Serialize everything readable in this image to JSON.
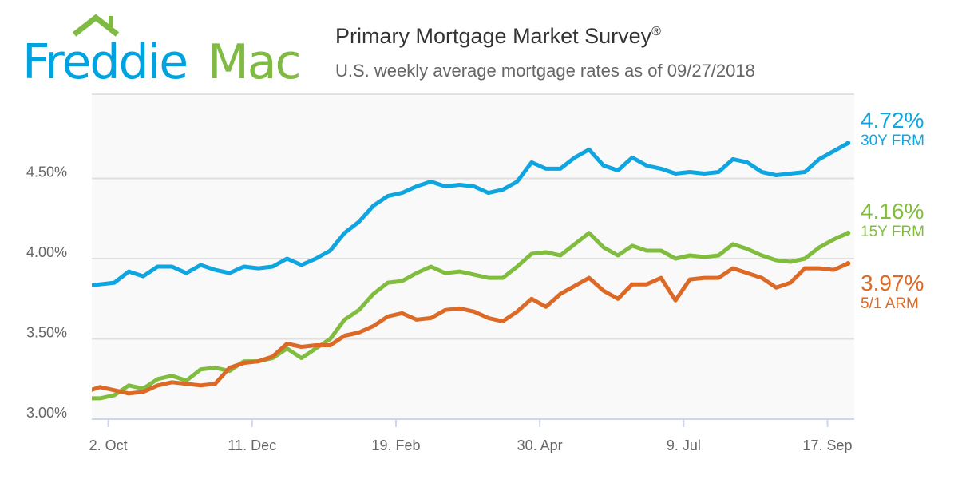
{
  "logo": {
    "text_left": "Freddie",
    "text_right": "Mac",
    "colors": {
      "left": "#00a3e0",
      "right": "#7fba42"
    }
  },
  "header": {
    "title": "Primary Mortgage Market Survey",
    "title_mark": "®",
    "subtitle": "U.S. weekly average mortgage rates as of 09/27/2018"
  },
  "chart_data": {
    "type": "line",
    "title": "Primary Mortgage Market Survey®",
    "subtitle": "U.S. weekly average mortgage rates as of 09/27/2018",
    "xlabel": "",
    "ylabel": "",
    "xlim": [
      "2017-09-24",
      "2018-09-30"
    ],
    "ylim": [
      3.0,
      5.0
    ],
    "grid": true,
    "legend": "right (end labels)",
    "y_ticks": [
      {
        "value": 3.0,
        "label": "3.00%"
      },
      {
        "value": 3.5,
        "label": "3.50%"
      },
      {
        "value": 4.0,
        "label": "4.00%"
      },
      {
        "value": 4.5,
        "label": "4.50%"
      }
    ],
    "x_ticks": [
      {
        "date": "2017-10-02",
        "label": "2. Oct"
      },
      {
        "date": "2017-12-11",
        "label": "11. Dec"
      },
      {
        "date": "2018-02-19",
        "label": "19. Feb"
      },
      {
        "date": "2018-04-30",
        "label": "30. Apr"
      },
      {
        "date": "2018-07-09",
        "label": "9. Jul"
      },
      {
        "date": "2018-09-17",
        "label": "17. Sep"
      }
    ],
    "x": [
      "2017-09-21",
      "2017-09-28",
      "2017-10-05",
      "2017-10-12",
      "2017-10-19",
      "2017-10-26",
      "2017-11-02",
      "2017-11-09",
      "2017-11-16",
      "2017-11-23",
      "2017-11-30",
      "2017-12-07",
      "2017-12-14",
      "2017-12-21",
      "2017-12-28",
      "2018-01-04",
      "2018-01-11",
      "2018-01-18",
      "2018-01-25",
      "2018-02-01",
      "2018-02-08",
      "2018-02-15",
      "2018-02-22",
      "2018-03-01",
      "2018-03-08",
      "2018-03-15",
      "2018-03-22",
      "2018-03-29",
      "2018-04-05",
      "2018-04-12",
      "2018-04-19",
      "2018-04-26",
      "2018-05-03",
      "2018-05-10",
      "2018-05-17",
      "2018-05-24",
      "2018-05-31",
      "2018-06-07",
      "2018-06-14",
      "2018-06-21",
      "2018-06-28",
      "2018-07-05",
      "2018-07-12",
      "2018-07-19",
      "2018-07-26",
      "2018-08-02",
      "2018-08-09",
      "2018-08-16",
      "2018-08-23",
      "2018-08-30",
      "2018-09-06",
      "2018-09-13",
      "2018-09-20",
      "2018-09-27"
    ],
    "series": [
      {
        "name": "30Y FRM",
        "color": "#0ea5e0",
        "last_label": "4.72%",
        "values": [
          3.83,
          3.84,
          3.85,
          3.92,
          3.89,
          3.95,
          3.95,
          3.91,
          3.96,
          3.93,
          3.91,
          3.95,
          3.94,
          3.95,
          4.0,
          3.96,
          4.0,
          4.05,
          4.16,
          4.23,
          4.33,
          4.39,
          4.41,
          4.45,
          4.48,
          4.45,
          4.46,
          4.45,
          4.41,
          4.43,
          4.48,
          4.6,
          4.56,
          4.56,
          4.63,
          4.68,
          4.58,
          4.55,
          4.63,
          4.58,
          4.56,
          4.53,
          4.54,
          4.53,
          4.54,
          4.62,
          4.6,
          4.54,
          4.52,
          4.53,
          4.54,
          4.62,
          4.67,
          4.72
        ]
      },
      {
        "name": "15Y FRM",
        "color": "#80bd3f",
        "last_label": "4.16%",
        "values": [
          3.13,
          3.13,
          3.15,
          3.21,
          3.19,
          3.25,
          3.27,
          3.24,
          3.31,
          3.32,
          3.3,
          3.36,
          3.36,
          3.38,
          3.44,
          3.38,
          3.44,
          3.5,
          3.62,
          3.68,
          3.78,
          3.85,
          3.86,
          3.91,
          3.95,
          3.91,
          3.92,
          3.9,
          3.88,
          3.88,
          3.95,
          4.03,
          4.04,
          4.02,
          4.09,
          4.16,
          4.07,
          4.02,
          4.08,
          4.05,
          4.05,
          4.0,
          4.02,
          4.01,
          4.02,
          4.09,
          4.06,
          4.02,
          3.99,
          3.98,
          4.0,
          4.07,
          4.12,
          4.16
        ]
      },
      {
        "name": "5/1 ARM",
        "color": "#dc6a26",
        "last_label": "3.97%",
        "values": [
          3.17,
          3.2,
          3.18,
          3.16,
          3.17,
          3.21,
          3.23,
          3.22,
          3.21,
          3.22,
          3.32,
          3.35,
          3.36,
          3.39,
          3.47,
          3.45,
          3.46,
          3.46,
          3.52,
          3.54,
          3.58,
          3.64,
          3.66,
          3.62,
          3.63,
          3.68,
          3.69,
          3.67,
          3.63,
          3.61,
          3.67,
          3.75,
          3.7,
          3.78,
          3.83,
          3.88,
          3.8,
          3.75,
          3.84,
          3.84,
          3.88,
          3.74,
          3.87,
          3.88,
          3.88,
          3.94,
          3.91,
          3.88,
          3.82,
          3.85,
          3.94,
          3.94,
          3.93,
          3.97
        ]
      }
    ]
  }
}
